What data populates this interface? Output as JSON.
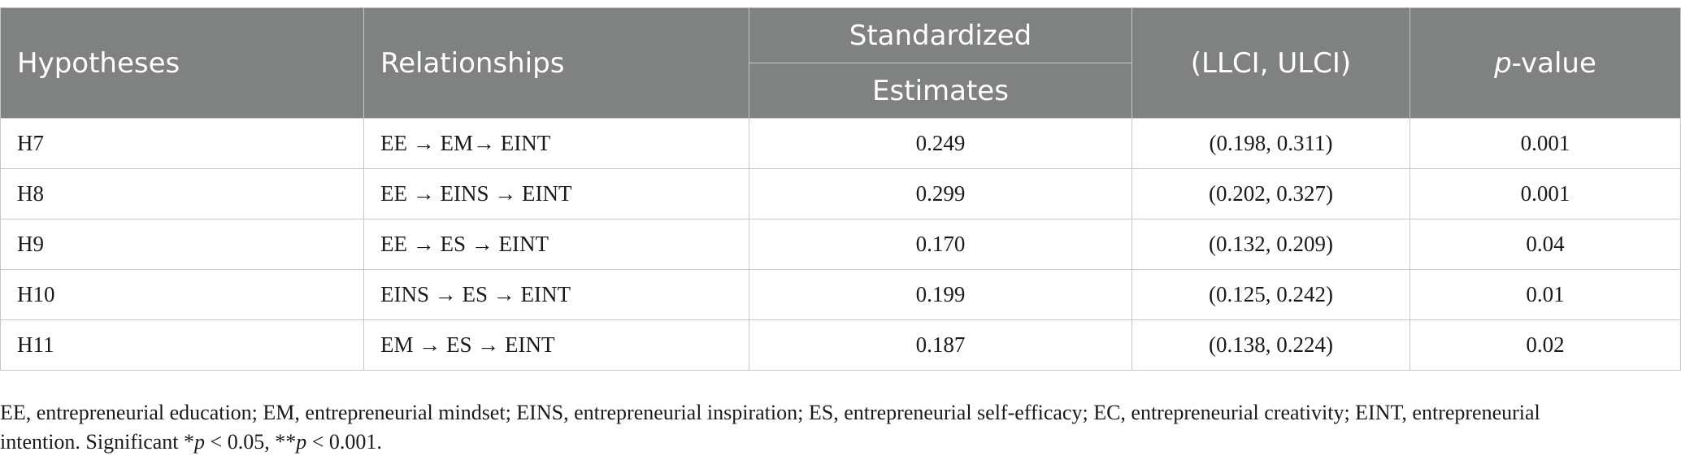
{
  "table": {
    "headers": {
      "hypotheses": "Hypotheses",
      "relationships": "Relationships",
      "standardized_line1": "Standardized",
      "standardized_line2": "Estimates",
      "ci": "(LLCI, ULCI)",
      "p_italic": "p",
      "p_rest": "-value"
    },
    "rows": [
      {
        "hypothesis": "H7",
        "relationship": "EE → EM→ EINT",
        "estimate": "0.249",
        "ci": "(0.198, 0.311)",
        "p": "0.001"
      },
      {
        "hypothesis": "H8",
        "relationship": "EE → EINS → EINT",
        "estimate": "0.299",
        "ci": "(0.202, 0.327)",
        "p": "0.001"
      },
      {
        "hypothesis": "H9",
        "relationship": "EE → ES → EINT",
        "estimate": "0.170",
        "ci": "(0.132, 0.209)",
        "p": "0.04"
      },
      {
        "hypothesis": "H10",
        "relationship": "EINS → ES → EINT",
        "estimate": "0.199",
        "ci": "(0.125, 0.242)",
        "p": "0.01"
      },
      {
        "hypothesis": "H11",
        "relationship": "EM → ES → EINT",
        "estimate": "0.187",
        "ci": "(0.138, 0.224)",
        "p": "0.02"
      }
    ]
  },
  "footnote": {
    "line1": "EE, entrepreneurial education; EM, entrepreneurial mindset; EINS, entrepreneurial inspiration; ES, entrepreneurial self-efficacy; EC, entrepreneurial creativity; EINT, entrepreneurial",
    "line2_pre": "intention. Significant *",
    "p1": "p",
    "mid": " < 0.05, **",
    "p2": "p",
    "end": " < 0.001."
  },
  "colors": {
    "header_bg": "#808281",
    "header_text": "#ffffff",
    "border": "#c8c8c8"
  }
}
